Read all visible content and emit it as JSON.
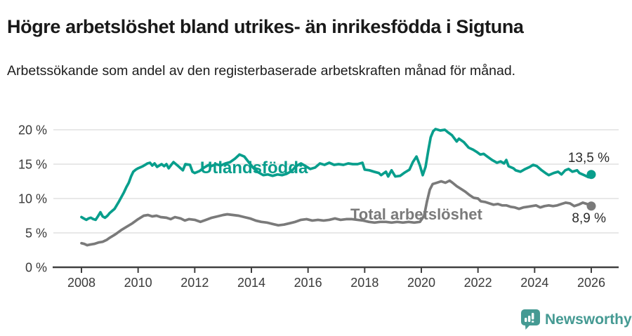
{
  "header": {
    "title": "Högre arbetslöshet bland utrikes- än inrikesfödda i Sigtuna",
    "subtitle": "Arbetssökande som andel av den registerbaserade arbetskraften månad för månad."
  },
  "colors": {
    "foreign_line": "#089e8c",
    "total_line": "#7a7a7a",
    "axis": "#404040",
    "grid": "#d9d9d9",
    "tick_text": "#3a3a3a",
    "logo": "#459a93"
  },
  "footer": {
    "brand": "Newsworthy"
  },
  "chart_data": {
    "type": "line",
    "title": "Högre arbetslöshet bland utrikes- än inrikesfödda i Sigtuna",
    "subtitle": "Arbetssökande som andel av den registerbaserade arbetskraften månad för månad.",
    "xlabel": "",
    "ylabel": "",
    "unit": "%",
    "xlim": [
      2007,
      2027
    ],
    "ylim": [
      0,
      20
    ],
    "grid": "horizontal",
    "x_ticks": [
      2008,
      2010,
      2012,
      2014,
      2016,
      2018,
      2020,
      2022,
      2024,
      2026
    ],
    "y_tick_values": [
      0,
      5,
      10,
      15,
      20
    ],
    "y_tick_labels": [
      "0 %",
      "5 %",
      "10 %",
      "15 %",
      "20 %"
    ],
    "legend_position": "inline-labels",
    "series": [
      {
        "name": "Utlandsfödda",
        "color": "#089e8c",
        "end_label": "13,5 %",
        "end_value": 13.5,
        "points": [
          [
            2008.0,
            7.3
          ],
          [
            2008.08,
            7.1
          ],
          [
            2008.17,
            6.9
          ],
          [
            2008.25,
            7.1
          ],
          [
            2008.33,
            7.2
          ],
          [
            2008.42,
            7.0
          ],
          [
            2008.5,
            6.9
          ],
          [
            2008.58,
            7.4
          ],
          [
            2008.67,
            8.0
          ],
          [
            2008.75,
            7.4
          ],
          [
            2008.83,
            7.2
          ],
          [
            2008.92,
            7.5
          ],
          [
            2009.0,
            7.9
          ],
          [
            2009.17,
            8.5
          ],
          [
            2009.33,
            9.6
          ],
          [
            2009.5,
            10.9
          ],
          [
            2009.58,
            11.6
          ],
          [
            2009.67,
            12.3
          ],
          [
            2009.75,
            13.2
          ],
          [
            2009.83,
            13.9
          ],
          [
            2009.92,
            14.2
          ],
          [
            2010.0,
            14.4
          ],
          [
            2010.17,
            14.7
          ],
          [
            2010.33,
            15.1
          ],
          [
            2010.42,
            15.2
          ],
          [
            2010.5,
            14.8
          ],
          [
            2010.58,
            15.1
          ],
          [
            2010.67,
            14.6
          ],
          [
            2010.83,
            15.0
          ],
          [
            2010.92,
            14.7
          ],
          [
            2011.0,
            15.0
          ],
          [
            2011.08,
            14.4
          ],
          [
            2011.17,
            14.9
          ],
          [
            2011.25,
            15.3
          ],
          [
            2011.42,
            14.7
          ],
          [
            2011.58,
            14.1
          ],
          [
            2011.67,
            15.0
          ],
          [
            2011.83,
            14.9
          ],
          [
            2011.92,
            13.9
          ],
          [
            2012.0,
            13.7
          ],
          [
            2012.17,
            14.0
          ],
          [
            2012.33,
            14.5
          ],
          [
            2012.5,
            14.9
          ],
          [
            2012.58,
            14.7
          ],
          [
            2012.75,
            15.0
          ],
          [
            2012.92,
            14.8
          ],
          [
            2013.08,
            15.1
          ],
          [
            2013.25,
            15.3
          ],
          [
            2013.42,
            15.8
          ],
          [
            2013.58,
            16.4
          ],
          [
            2013.75,
            16.1
          ],
          [
            2013.92,
            15.2
          ],
          [
            2014.08,
            14.4
          ],
          [
            2014.25,
            13.8
          ],
          [
            2014.42,
            13.4
          ],
          [
            2014.58,
            13.5
          ],
          [
            2014.75,
            13.3
          ],
          [
            2014.92,
            13.5
          ],
          [
            2015.08,
            13.4
          ],
          [
            2015.25,
            13.6
          ],
          [
            2015.42,
            14.0
          ],
          [
            2015.58,
            14.7
          ],
          [
            2015.75,
            15.1
          ],
          [
            2015.92,
            14.7
          ],
          [
            2016.08,
            14.3
          ],
          [
            2016.25,
            14.5
          ],
          [
            2016.42,
            15.1
          ],
          [
            2016.58,
            14.9
          ],
          [
            2016.75,
            15.2
          ],
          [
            2016.92,
            14.9
          ],
          [
            2017.08,
            15.0
          ],
          [
            2017.25,
            14.9
          ],
          [
            2017.42,
            15.1
          ],
          [
            2017.58,
            15.0
          ],
          [
            2017.75,
            15.0
          ],
          [
            2017.92,
            15.2
          ],
          [
            2018.0,
            14.2
          ],
          [
            2018.17,
            14.1
          ],
          [
            2018.33,
            13.9
          ],
          [
            2018.5,
            13.7
          ],
          [
            2018.58,
            13.4
          ],
          [
            2018.75,
            13.9
          ],
          [
            2018.83,
            13.2
          ],
          [
            2018.95,
            14.1
          ],
          [
            2019.08,
            13.2
          ],
          [
            2019.25,
            13.3
          ],
          [
            2019.42,
            13.8
          ],
          [
            2019.58,
            14.2
          ],
          [
            2019.7,
            15.3
          ],
          [
            2019.83,
            16.1
          ],
          [
            2019.95,
            14.8
          ],
          [
            2020.05,
            13.4
          ],
          [
            2020.15,
            14.6
          ],
          [
            2020.25,
            17.1
          ],
          [
            2020.33,
            18.9
          ],
          [
            2020.42,
            19.8
          ],
          [
            2020.5,
            20.1
          ],
          [
            2020.67,
            19.9
          ],
          [
            2020.83,
            20.0
          ],
          [
            2020.95,
            19.6
          ],
          [
            2021.08,
            19.2
          ],
          [
            2021.25,
            18.3
          ],
          [
            2021.33,
            18.7
          ],
          [
            2021.5,
            18.2
          ],
          [
            2021.67,
            17.4
          ],
          [
            2021.83,
            17.1
          ],
          [
            2021.95,
            16.8
          ],
          [
            2022.08,
            16.4
          ],
          [
            2022.2,
            16.5
          ],
          [
            2022.33,
            16.1
          ],
          [
            2022.5,
            15.6
          ],
          [
            2022.67,
            15.2
          ],
          [
            2022.8,
            15.4
          ],
          [
            2022.92,
            15.1
          ],
          [
            2023.0,
            15.6
          ],
          [
            2023.08,
            14.7
          ],
          [
            2023.25,
            14.4
          ],
          [
            2023.33,
            14.1
          ],
          [
            2023.5,
            13.9
          ],
          [
            2023.67,
            14.3
          ],
          [
            2023.83,
            14.6
          ],
          [
            2023.95,
            14.9
          ],
          [
            2024.08,
            14.7
          ],
          [
            2024.25,
            14.1
          ],
          [
            2024.42,
            13.6
          ],
          [
            2024.5,
            13.4
          ],
          [
            2024.67,
            13.7
          ],
          [
            2024.83,
            13.9
          ],
          [
            2024.95,
            13.5
          ],
          [
            2025.08,
            14.1
          ],
          [
            2025.2,
            14.3
          ],
          [
            2025.33,
            13.9
          ],
          [
            2025.5,
            14.1
          ],
          [
            2025.58,
            13.7
          ],
          [
            2025.75,
            13.4
          ],
          [
            2025.9,
            13.1
          ],
          [
            2026.0,
            13.5
          ]
        ]
      },
      {
        "name": "Total arbetslöshet",
        "color": "#7a7a7a",
        "end_label": "8,9 %",
        "end_value": 8.9,
        "points": [
          [
            2008.0,
            3.5
          ],
          [
            2008.1,
            3.4
          ],
          [
            2008.2,
            3.2
          ],
          [
            2008.3,
            3.3
          ],
          [
            2008.45,
            3.4
          ],
          [
            2008.6,
            3.6
          ],
          [
            2008.75,
            3.7
          ],
          [
            2008.9,
            4.0
          ],
          [
            2009.0,
            4.3
          ],
          [
            2009.2,
            4.8
          ],
          [
            2009.4,
            5.4
          ],
          [
            2009.6,
            5.9
          ],
          [
            2009.8,
            6.4
          ],
          [
            2010.0,
            7.0
          ],
          [
            2010.2,
            7.5
          ],
          [
            2010.35,
            7.6
          ],
          [
            2010.5,
            7.4
          ],
          [
            2010.65,
            7.5
          ],
          [
            2010.8,
            7.3
          ],
          [
            2011.0,
            7.2
          ],
          [
            2011.15,
            7.0
          ],
          [
            2011.3,
            7.3
          ],
          [
            2011.5,
            7.1
          ],
          [
            2011.65,
            6.8
          ],
          [
            2011.8,
            7.0
          ],
          [
            2012.0,
            6.9
          ],
          [
            2012.2,
            6.6
          ],
          [
            2012.4,
            6.9
          ],
          [
            2012.6,
            7.2
          ],
          [
            2012.8,
            7.4
          ],
          [
            2013.0,
            7.6
          ],
          [
            2013.15,
            7.7
          ],
          [
            2013.35,
            7.6
          ],
          [
            2013.55,
            7.5
          ],
          [
            2013.75,
            7.3
          ],
          [
            2013.95,
            7.1
          ],
          [
            2014.15,
            6.8
          ],
          [
            2014.35,
            6.6
          ],
          [
            2014.55,
            6.5
          ],
          [
            2014.75,
            6.3
          ],
          [
            2014.95,
            6.1
          ],
          [
            2015.15,
            6.2
          ],
          [
            2015.35,
            6.4
          ],
          [
            2015.55,
            6.6
          ],
          [
            2015.75,
            6.9
          ],
          [
            2015.95,
            7.0
          ],
          [
            2016.15,
            6.8
          ],
          [
            2016.35,
            6.9
          ],
          [
            2016.55,
            6.8
          ],
          [
            2016.75,
            6.9
          ],
          [
            2016.95,
            7.1
          ],
          [
            2017.15,
            6.9
          ],
          [
            2017.35,
            7.0
          ],
          [
            2017.55,
            7.0
          ],
          [
            2017.75,
            6.9
          ],
          [
            2017.95,
            6.8
          ],
          [
            2018.15,
            6.6
          ],
          [
            2018.35,
            6.5
          ],
          [
            2018.55,
            6.6
          ],
          [
            2018.75,
            6.6
          ],
          [
            2018.95,
            6.5
          ],
          [
            2019.15,
            6.6
          ],
          [
            2019.35,
            6.5
          ],
          [
            2019.55,
            6.6
          ],
          [
            2019.75,
            6.5
          ],
          [
            2019.95,
            6.6
          ],
          [
            2020.1,
            7.5
          ],
          [
            2020.2,
            9.6
          ],
          [
            2020.3,
            11.3
          ],
          [
            2020.4,
            12.1
          ],
          [
            2020.55,
            12.3
          ],
          [
            2020.7,
            12.5
          ],
          [
            2020.85,
            12.3
          ],
          [
            2021.0,
            12.6
          ],
          [
            2021.1,
            12.3
          ],
          [
            2021.25,
            11.8
          ],
          [
            2021.4,
            11.4
          ],
          [
            2021.55,
            11.0
          ],
          [
            2021.7,
            10.5
          ],
          [
            2021.85,
            10.1
          ],
          [
            2022.0,
            10.0
          ],
          [
            2022.1,
            9.6
          ],
          [
            2022.25,
            9.5
          ],
          [
            2022.4,
            9.3
          ],
          [
            2022.55,
            9.1
          ],
          [
            2022.7,
            9.2
          ],
          [
            2022.85,
            9.0
          ],
          [
            2023.0,
            9.0
          ],
          [
            2023.15,
            8.8
          ],
          [
            2023.3,
            8.7
          ],
          [
            2023.45,
            8.5
          ],
          [
            2023.6,
            8.7
          ],
          [
            2023.75,
            8.8
          ],
          [
            2023.9,
            8.9
          ],
          [
            2024.05,
            9.0
          ],
          [
            2024.2,
            8.7
          ],
          [
            2024.35,
            8.9
          ],
          [
            2024.5,
            9.0
          ],
          [
            2024.65,
            8.9
          ],
          [
            2024.8,
            9.0
          ],
          [
            2024.95,
            9.2
          ],
          [
            2025.1,
            9.4
          ],
          [
            2025.25,
            9.3
          ],
          [
            2025.4,
            8.9
          ],
          [
            2025.55,
            9.1
          ],
          [
            2025.7,
            9.4
          ],
          [
            2025.85,
            9.2
          ],
          [
            2026.0,
            8.9
          ]
        ]
      }
    ]
  }
}
